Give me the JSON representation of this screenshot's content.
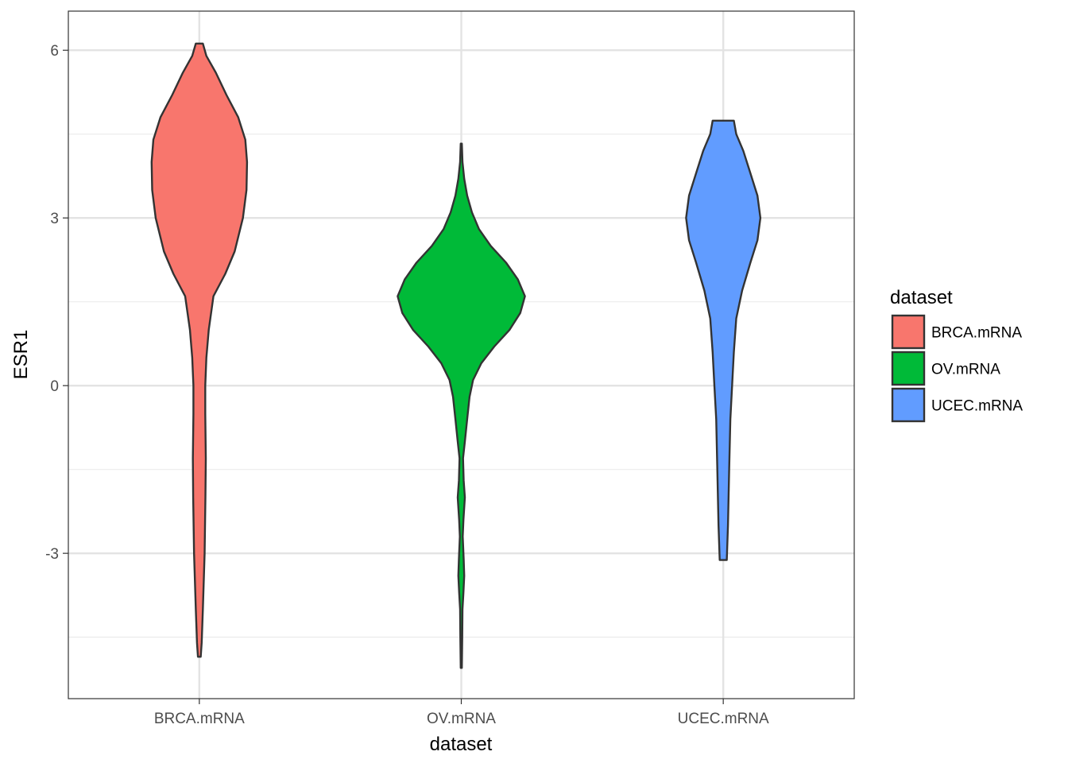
{
  "chart_data": {
    "type": "violin",
    "xlabel": "dataset",
    "ylabel": "ESR1",
    "ylim": [
      -5.6,
      6.7
    ],
    "yticks": [
      -3,
      0,
      3,
      6
    ],
    "ytick_labels": [
      "-3",
      "0",
      "3",
      "6"
    ],
    "categories": [
      "BRCA.mRNA",
      "OV.mRNA",
      "UCEC.mRNA"
    ],
    "grid": true,
    "legend": {
      "title": "dataset",
      "placement": "right",
      "entries": [
        "BRCA.mRNA",
        "OV.mRNA",
        "UCEC.mRNA"
      ]
    },
    "series": [
      {
        "name": "BRCA.mRNA",
        "color": "#F8766D",
        "max_density_width": 1.0,
        "profile": [
          [
            -4.85,
            0.012
          ],
          [
            -4.6,
            0.02
          ],
          [
            -4.0,
            0.03
          ],
          [
            -3.0,
            0.045
          ],
          [
            -2.0,
            0.052
          ],
          [
            -1.3,
            0.055
          ],
          [
            -0.5,
            0.05
          ],
          [
            0.0,
            0.05
          ],
          [
            0.5,
            0.06
          ],
          [
            1.0,
            0.08
          ],
          [
            1.6,
            0.12
          ],
          [
            2.0,
            0.22
          ],
          [
            2.4,
            0.3
          ],
          [
            3.0,
            0.37
          ],
          [
            3.5,
            0.4
          ],
          [
            4.0,
            0.405
          ],
          [
            4.4,
            0.39
          ],
          [
            4.8,
            0.33
          ],
          [
            5.2,
            0.23
          ],
          [
            5.6,
            0.14
          ],
          [
            5.9,
            0.06
          ],
          [
            6.12,
            0.03
          ]
        ]
      },
      {
        "name": "OV.mRNA",
        "color": "#00BA38",
        "max_density_width": 1.0,
        "profile": [
          [
            -5.05,
            0.005
          ],
          [
            -4.5,
            0.008
          ],
          [
            -4.0,
            0.01
          ],
          [
            -3.7,
            0.018
          ],
          [
            -3.4,
            0.025
          ],
          [
            -3.1,
            0.02
          ],
          [
            -2.7,
            0.012
          ],
          [
            -2.4,
            0.018
          ],
          [
            -2.0,
            0.03
          ],
          [
            -1.7,
            0.02
          ],
          [
            -1.3,
            0.015
          ],
          [
            -1.0,
            0.03
          ],
          [
            -0.6,
            0.05
          ],
          [
            -0.2,
            0.07
          ],
          [
            0.1,
            0.1
          ],
          [
            0.4,
            0.17
          ],
          [
            0.7,
            0.28
          ],
          [
            1.0,
            0.41
          ],
          [
            1.3,
            0.5
          ],
          [
            1.6,
            0.54
          ],
          [
            1.9,
            0.48
          ],
          [
            2.2,
            0.38
          ],
          [
            2.5,
            0.25
          ],
          [
            2.8,
            0.15
          ],
          [
            3.1,
            0.09
          ],
          [
            3.4,
            0.05
          ],
          [
            3.7,
            0.025
          ],
          [
            4.0,
            0.01
          ],
          [
            4.33,
            0.005
          ]
        ]
      },
      {
        "name": "UCEC.mRNA",
        "color": "#619CFF",
        "max_density_width": 1.0,
        "profile": [
          [
            -3.12,
            0.03
          ],
          [
            -2.5,
            0.04
          ],
          [
            -1.5,
            0.05
          ],
          [
            -0.6,
            0.06
          ],
          [
            0.0,
            0.075
          ],
          [
            0.6,
            0.09
          ],
          [
            1.2,
            0.11
          ],
          [
            1.7,
            0.16
          ],
          [
            2.2,
            0.23
          ],
          [
            2.6,
            0.29
          ],
          [
            3.0,
            0.315
          ],
          [
            3.4,
            0.29
          ],
          [
            3.8,
            0.23
          ],
          [
            4.2,
            0.17
          ],
          [
            4.5,
            0.11
          ],
          [
            4.74,
            0.09
          ]
        ]
      }
    ]
  }
}
